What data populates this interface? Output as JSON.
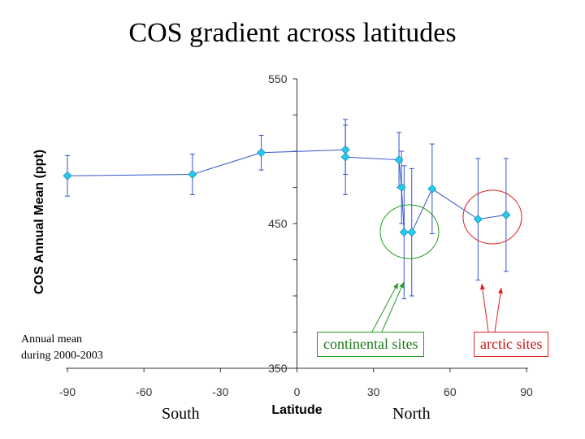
{
  "chart_data": {
    "type": "scatter",
    "title": "COS gradient across latitudes",
    "xlabel": "Latitude",
    "ylabel": "COS Annual Mean (ppt)",
    "xlim": [
      -90,
      90
    ],
    "ylim": [
      350,
      550
    ],
    "x_ticks": [
      "-90",
      "-60",
      "-30",
      "0",
      "30",
      "60",
      "90"
    ],
    "y_ticks": [
      "350",
      "450",
      "550"
    ],
    "series": [
      {
        "points": [
          {
            "x": -90,
            "y": 483,
            "err": 14
          },
          {
            "x": -41,
            "y": 484,
            "err": 14
          },
          {
            "x": -14,
            "y": 499,
            "err": 12
          },
          {
            "x": 19,
            "y": 501,
            "err": 17
          },
          {
            "x": 19,
            "y": 496,
            "err": 26
          },
          {
            "x": 40,
            "y": 494,
            "err": 19
          },
          {
            "x": 41,
            "y": 475,
            "err": 25
          },
          {
            "x": 42,
            "y": 444,
            "err": 46
          },
          {
            "x": 45,
            "y": 444,
            "err": 44
          },
          {
            "x": 53,
            "y": 474,
            "err": 31
          },
          {
            "x": 71,
            "y": 453,
            "err": 42
          },
          {
            "x": 82,
            "y": 456,
            "err": 39
          }
        ],
        "color": "#3355cc",
        "marker_color": "#22ccee"
      }
    ],
    "annotations": {
      "annual_note_line1": "Annual mean",
      "annual_note_line2": "during 2000-2003",
      "south": "South",
      "north": "North",
      "continental": "continental sites",
      "arctic": "arctic sites"
    },
    "annotation_colors": {
      "continental": "#22a022",
      "arctic": "#e02020"
    }
  }
}
